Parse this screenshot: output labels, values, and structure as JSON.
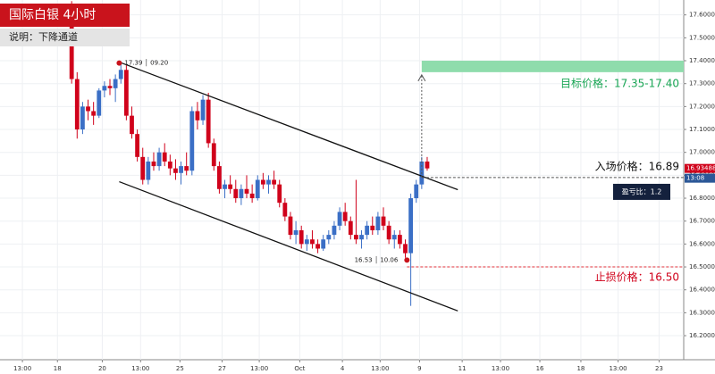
{
  "chart_data": {
    "type": "candlestick",
    "title": "国际白银 4小时",
    "subtitle": "说明：下降通道",
    "up_color": "#3b6fc6",
    "down_color": "#d0021b",
    "grid": true,
    "x": [
      0,
      1,
      2,
      3,
      4,
      5,
      6,
      7,
      8,
      9,
      10,
      11,
      12,
      13,
      14,
      15,
      16,
      17,
      18,
      19,
      20,
      21,
      22,
      23,
      24,
      25,
      26,
      27,
      28,
      29,
      30,
      31,
      32,
      33,
      34,
      35,
      36,
      37,
      38,
      39,
      40,
      41,
      42,
      43,
      44,
      45,
      46,
      47,
      48,
      49,
      50,
      51,
      52,
      53,
      54,
      55,
      56,
      57,
      58,
      59,
      60,
      61,
      62,
      63,
      64,
      65
    ],
    "open": [
      17.55,
      17.32,
      17.1,
      17.2,
      17.18,
      17.16,
      17.27,
      17.29,
      17.28,
      17.32,
      17.36,
      17.16,
      17.08,
      16.98,
      16.88,
      16.96,
      16.94,
      17.0,
      16.96,
      16.93,
      16.91,
      16.94,
      16.92,
      17.18,
      17.14,
      17.23,
      17.04,
      16.94,
      16.84,
      16.86,
      16.84,
      16.8,
      16.84,
      16.82,
      16.8,
      16.88,
      16.86,
      16.88,
      16.86,
      16.78,
      16.72,
      16.64,
      16.66,
      16.6,
      16.62,
      16.6,
      16.58,
      16.62,
      16.64,
      16.68,
      16.74,
      16.7,
      16.64,
      16.62,
      16.64,
      16.68,
      16.66,
      16.72,
      16.68,
      16.62,
      16.64,
      16.6,
      16.56,
      16.8,
      16.86,
      16.96
    ],
    "high": [
      17.66,
      17.35,
      17.22,
      17.23,
      17.22,
      17.28,
      17.31,
      17.32,
      17.34,
      17.39,
      17.38,
      17.2,
      17.1,
      17.02,
      16.98,
      17.0,
      17.02,
      17.04,
      16.99,
      16.97,
      16.96,
      17.0,
      17.2,
      17.22,
      17.25,
      17.26,
      17.06,
      16.96,
      16.88,
      16.9,
      16.88,
      16.86,
      16.9,
      16.86,
      16.9,
      16.91,
      16.9,
      16.92,
      16.88,
      16.8,
      16.74,
      16.7,
      16.68,
      16.64,
      16.66,
      16.62,
      16.64,
      16.66,
      16.7,
      16.76,
      16.78,
      16.72,
      16.88,
      16.66,
      16.7,
      16.72,
      16.74,
      16.76,
      16.7,
      16.66,
      16.66,
      16.62,
      16.82,
      16.88,
      16.98,
      16.98
    ],
    "low": [
      17.3,
      17.06,
      17.08,
      17.14,
      17.12,
      17.15,
      17.24,
      17.25,
      17.22,
      17.3,
      17.14,
      17.06,
      16.96,
      16.86,
      16.86,
      16.92,
      16.92,
      16.94,
      16.9,
      16.88,
      16.86,
      16.9,
      16.9,
      17.1,
      17.12,
      17.02,
      16.92,
      16.82,
      16.8,
      16.82,
      16.78,
      16.77,
      16.8,
      16.78,
      16.79,
      16.84,
      16.82,
      16.84,
      16.76,
      16.7,
      16.62,
      16.6,
      16.58,
      16.57,
      16.58,
      16.56,
      16.57,
      16.6,
      16.62,
      16.66,
      16.68,
      16.62,
      16.6,
      16.58,
      16.62,
      16.64,
      16.64,
      16.66,
      16.6,
      16.58,
      16.58,
      16.54,
      16.33,
      16.78,
      16.84,
      16.92
    ],
    "close": [
      17.32,
      17.1,
      17.2,
      17.18,
      17.16,
      17.27,
      17.29,
      17.28,
      17.32,
      17.36,
      17.16,
      17.08,
      16.98,
      16.88,
      16.96,
      16.94,
      17.0,
      16.96,
      16.93,
      16.91,
      16.94,
      16.92,
      17.18,
      17.14,
      17.23,
      17.04,
      16.94,
      16.84,
      16.86,
      16.84,
      16.8,
      16.84,
      16.82,
      16.8,
      16.88,
      16.86,
      16.88,
      16.86,
      16.78,
      16.72,
      16.64,
      16.66,
      16.6,
      16.62,
      16.6,
      16.58,
      16.62,
      16.64,
      16.68,
      16.74,
      16.7,
      16.64,
      16.62,
      16.64,
      16.68,
      16.66,
      16.72,
      16.68,
      16.62,
      16.64,
      16.6,
      16.56,
      16.8,
      16.86,
      16.96,
      16.93
    ],
    "xlim": [
      -13.1,
      111.9
    ],
    "xticks": [
      {
        "value": -9.0,
        "label": "13:00"
      },
      {
        "value": -2.6,
        "label": "18"
      },
      {
        "value": 5.6,
        "label": "20"
      },
      {
        "value": 12.6,
        "label": "13:00"
      },
      {
        "value": 19.8,
        "label": "25"
      },
      {
        "value": 27.5,
        "label": "27"
      },
      {
        "value": 34.3,
        "label": "13:00"
      },
      {
        "value": 41.7,
        "label": "Oct"
      },
      {
        "value": 49.5,
        "label": "4"
      },
      {
        "value": 56.4,
        "label": "13:00"
      },
      {
        "value": 63.6,
        "label": "9"
      },
      {
        "value": 71.4,
        "label": "11"
      },
      {
        "value": 78.4,
        "label": "13:00"
      },
      {
        "value": 85.6,
        "label": "16"
      },
      {
        "value": 93.1,
        "label": "18"
      },
      {
        "value": 99.9,
        "label": "13:00"
      },
      {
        "value": 107.4,
        "label": "23"
      }
    ],
    "ylim": [
      16.095,
      17.665
    ],
    "yticks": [
      {
        "value": 16.2,
        "label": "16.20000"
      },
      {
        "value": 16.3,
        "label": "16.30000"
      },
      {
        "value": 16.4,
        "label": "16.40000"
      },
      {
        "value": 16.5,
        "label": "16.50000"
      },
      {
        "value": 16.6,
        "label": "16.60000"
      },
      {
        "value": 16.7,
        "label": "16.70000"
      },
      {
        "value": 16.8,
        "label": "16.80000"
      },
      {
        "value": 16.9,
        "label": "16.90000"
      },
      {
        "value": 17.0,
        "label": "17.00000"
      },
      {
        "value": 17.1,
        "label": "17.10000"
      },
      {
        "value": 17.2,
        "label": "17.20000"
      },
      {
        "value": 17.3,
        "label": "17.30000"
      },
      {
        "value": 17.4,
        "label": "17.40000"
      },
      {
        "value": 17.5,
        "label": "17.50000"
      },
      {
        "value": 17.6,
        "label": "17.60000"
      }
    ],
    "channel_lines": [
      {
        "x": [
          8.7,
          70.6
        ],
        "y": [
          17.394,
          16.837
        ]
      },
      {
        "x": [
          8.7,
          70.6
        ],
        "y": [
          16.872,
          16.308
        ]
      }
    ],
    "peak_marker": {
      "x": 8.7,
      "y": 17.39,
      "label": "17.39 │ 09.20"
    },
    "trough_marker": {
      "x": 61.3,
      "y": 16.53,
      "label": "16.53 │ 10.06"
    },
    "target_zone": {
      "x": 64,
      "low": 17.35,
      "high": 17.4,
      "label": "目标价格：17.35-17.40"
    },
    "entry": {
      "x": 64,
      "value": 16.89,
      "label": "入场价格：16.89"
    },
    "ratio_label": "盈亏比：1.2",
    "stop": {
      "x": 61.3,
      "value": 16.5,
      "label": "止损价格：16.50"
    },
    "price_tags": [
      "16.93488",
      "13:08"
    ]
  }
}
